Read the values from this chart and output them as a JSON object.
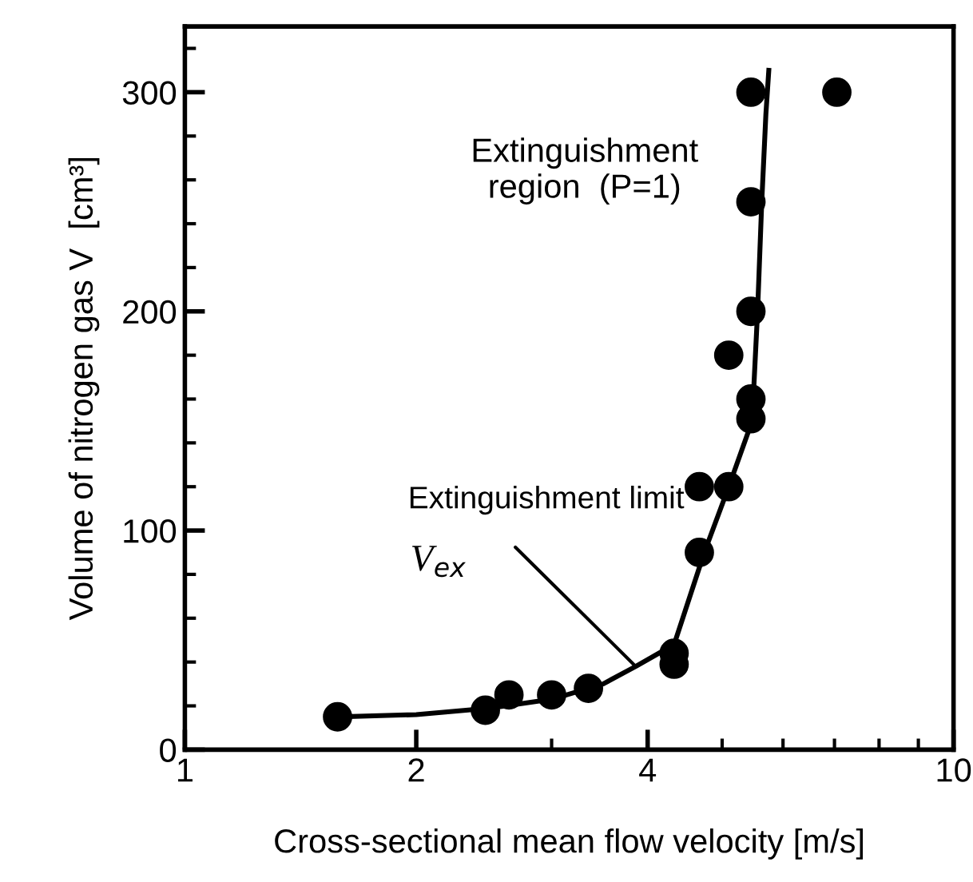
{
  "chart_data": {
    "type": "scatter",
    "xlabel": "Cross-sectional mean flow velocity [m/s]",
    "ylabel": "Volume of nitrogen gas V  [cm³]",
    "log": "x",
    "xlim": [
      1,
      10
    ],
    "xticks": [
      1,
      2,
      4,
      10
    ],
    "ylim": [
      0,
      330
    ],
    "yticks": [
      0,
      100,
      200,
      300
    ],
    "grid": false,
    "marker": "circle",
    "series": [
      {
        "color": "#000000",
        "x": [
          1.58,
          2.46,
          2.64,
          3.0,
          3.35,
          4.33,
          4.33,
          4.67,
          4.67,
          5.1,
          5.45,
          5.45,
          5.1,
          5.45,
          5.45,
          5.45,
          7.05
        ],
        "values": [
          15,
          18,
          25,
          25,
          28,
          44,
          39,
          90,
          120,
          120,
          151,
          160,
          180,
          200,
          250,
          300,
          300
        ]
      },
      {
        "type": "line",
        "color": "#000000",
        "marker": "none",
        "line_style": "solid",
        "x": [
          1.58,
          2.0,
          2.5,
          3.0,
          3.5,
          3.86,
          4.33,
          4.74,
          5.1,
          5.47,
          5.56,
          5.63,
          5.7,
          5.75
        ],
        "values": [
          15,
          16,
          19,
          23,
          30,
          38,
          48,
          90,
          120,
          150,
          200,
          250,
          290,
          310
        ]
      }
    ],
    "annotations": [
      "Extinguishment\nregion  (P=1)",
      {
        "text": "Extinguishment limit",
        "x": 3.86,
        "y": 38
      },
      "V$_{ex}$"
    ]
  }
}
